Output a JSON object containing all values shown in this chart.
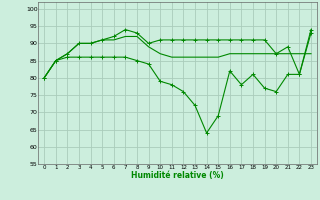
{
  "title": "",
  "xlabel": "Humidité relative (%)",
  "ylabel": "",
  "background_color": "#cceedd",
  "grid_color": "#aaccbb",
  "line_color": "#008800",
  "xlim": [
    -0.5,
    23.5
  ],
  "ylim": [
    55,
    102
  ],
  "yticks": [
    55,
    60,
    65,
    70,
    75,
    80,
    85,
    90,
    95,
    100
  ],
  "xticks": [
    0,
    1,
    2,
    3,
    4,
    5,
    6,
    7,
    8,
    9,
    10,
    11,
    12,
    13,
    14,
    15,
    16,
    17,
    18,
    19,
    20,
    21,
    22,
    23
  ],
  "line1": [
    80,
    85,
    87,
    90,
    90,
    91,
    92,
    94,
    93,
    90,
    91,
    91,
    91,
    91,
    91,
    91,
    91,
    91,
    91,
    91,
    87,
    89,
    81,
    93
  ],
  "line2": [
    80,
    85,
    87,
    90,
    90,
    91,
    91,
    92,
    92,
    89,
    87,
    86,
    86,
    86,
    86,
    86,
    87,
    87,
    87,
    87,
    87,
    87,
    87,
    87
  ],
  "line3": [
    80,
    85,
    86,
    86,
    86,
    86,
    86,
    86,
    85,
    84,
    79,
    78,
    76,
    72,
    64,
    69,
    82,
    78,
    81,
    77,
    76,
    81,
    81,
    94
  ]
}
